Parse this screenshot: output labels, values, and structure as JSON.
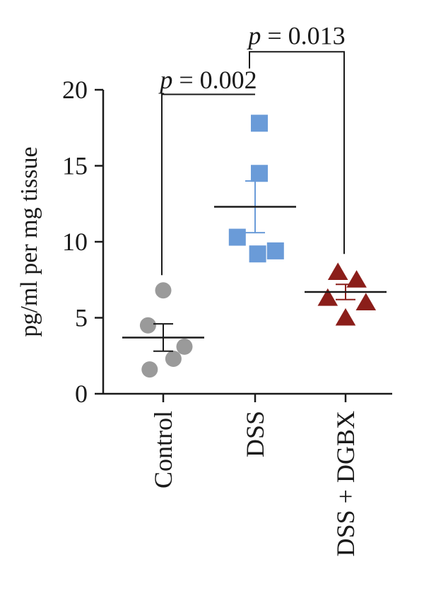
{
  "chart_data": {
    "type": "scatter",
    "ylabel": "pg/ml per mg tissue",
    "ylim": [
      0,
      20
    ],
    "yticks": [
      0,
      5,
      10,
      15,
      20
    ],
    "categories": [
      "Control",
      "DSS",
      "DSS + DGBX"
    ],
    "groups": [
      {
        "name": "Control",
        "marker": "circle",
        "color": "#9a9a9a",
        "points": [
          {
            "dx": 0.0,
            "y": 6.8
          },
          {
            "dx": -0.18,
            "y": 4.5
          },
          {
            "dx": 0.25,
            "y": 3.1
          },
          {
            "dx": 0.12,
            "y": 2.3
          },
          {
            "dx": -0.16,
            "y": 1.6
          }
        ],
        "mean": 3.7,
        "sem": 0.9
      },
      {
        "name": "DSS",
        "marker": "square",
        "color": "#6a9bd8",
        "points": [
          {
            "dx": 0.05,
            "y": 17.8
          },
          {
            "dx": 0.05,
            "y": 14.5
          },
          {
            "dx": -0.21,
            "y": 10.3
          },
          {
            "dx": 0.24,
            "y": 9.4
          },
          {
            "dx": 0.03,
            "y": 9.2
          }
        ],
        "mean": 12.3,
        "sem": 1.7
      },
      {
        "name": "DSS + DGBX",
        "marker": "triangle",
        "color": "#8b1e1a",
        "points": [
          {
            "dx": -0.09,
            "y": 8.0
          },
          {
            "dx": 0.13,
            "y": 7.5
          },
          {
            "dx": -0.21,
            "y": 6.3
          },
          {
            "dx": 0.24,
            "y": 6.0
          },
          {
            "dx": 0.0,
            "y": 5.0
          }
        ],
        "mean": 6.7,
        "sem": 0.5
      }
    ],
    "annotations": [
      {
        "text": "p = 0.002",
        "from": 0,
        "to": 1,
        "y": 19.7,
        "leg_from_y": 7.8,
        "leg_to_y": 19.7,
        "label_y": 20.1
      },
      {
        "text": "p = 0.013",
        "from": 1,
        "to": 2,
        "y": 22.5,
        "leg_from_y": 21.4,
        "leg_to_y": 9.2,
        "label_y": 23.0
      }
    ]
  }
}
